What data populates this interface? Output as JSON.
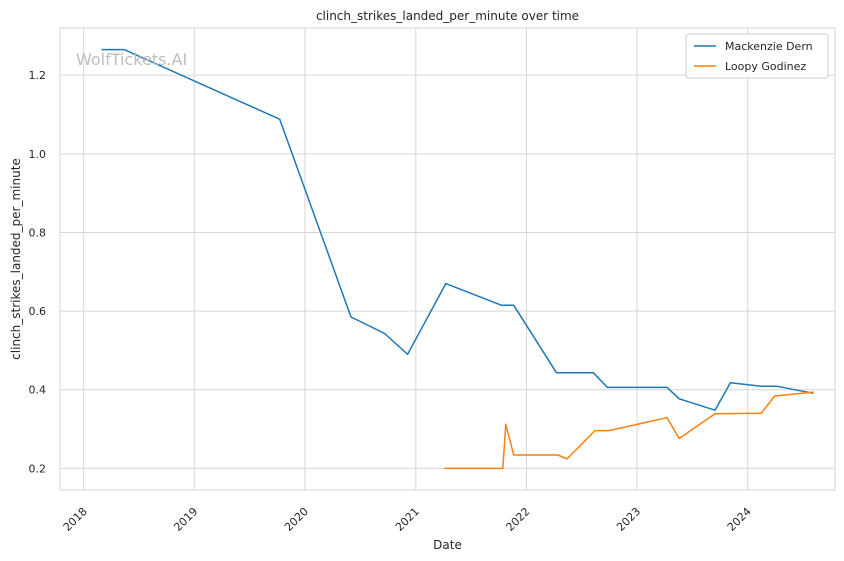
{
  "chart_data": {
    "type": "line",
    "title": "clinch_strikes_landed_per_minute over time",
    "xlabel": "Date",
    "ylabel": "clinch_strikes_landed_per_minute",
    "watermark": "WolfTickets.AI",
    "x_range": [
      "2017-10-15",
      "2024-10-15"
    ],
    "ylim": [
      0.145,
      1.32
    ],
    "x_ticks": [
      "2018",
      "2019",
      "2020",
      "2021",
      "2022",
      "2023",
      "2024"
    ],
    "y_ticks": [
      "0.2",
      "0.4",
      "0.6",
      "0.8",
      "1.0",
      "1.2"
    ],
    "grid": true,
    "legend_position": "top-right",
    "series": [
      {
        "name": "Mackenzie Dern",
        "color": "#1f77b4",
        "points": [
          [
            "2018-03-01",
            1.265
          ],
          [
            "2018-05-15",
            1.265
          ],
          [
            "2019-10-10",
            1.088
          ],
          [
            "2020-06-01",
            0.585
          ],
          [
            "2020-09-20",
            0.543
          ],
          [
            "2020-12-05",
            0.49
          ],
          [
            "2021-04-10",
            0.67
          ],
          [
            "2021-10-10",
            0.615
          ],
          [
            "2021-11-20",
            0.615
          ],
          [
            "2022-04-10",
            0.443
          ],
          [
            "2022-08-10",
            0.443
          ],
          [
            "2022-09-25",
            0.406
          ],
          [
            "2023-04-10",
            0.406
          ],
          [
            "2023-05-20",
            0.377
          ],
          [
            "2023-09-15",
            0.348
          ],
          [
            "2023-11-05",
            0.418
          ],
          [
            "2024-02-15",
            0.409
          ],
          [
            "2024-04-05",
            0.409
          ],
          [
            "2024-08-05",
            0.391
          ]
        ]
      },
      {
        "name": "Loopy Godinez",
        "color": "#ff7f0e",
        "points": [
          [
            "2021-04-05",
            0.2
          ],
          [
            "2021-10-15",
            0.2
          ],
          [
            "2021-10-25",
            0.312
          ],
          [
            "2021-11-20",
            0.234
          ],
          [
            "2022-04-15",
            0.234
          ],
          [
            "2022-05-15",
            0.224
          ],
          [
            "2022-08-15",
            0.296
          ],
          [
            "2022-09-30",
            0.296
          ],
          [
            "2023-04-10",
            0.329
          ],
          [
            "2023-05-20",
            0.276
          ],
          [
            "2023-09-15",
            0.339
          ],
          [
            "2024-02-15",
            0.34
          ],
          [
            "2024-03-30",
            0.384
          ],
          [
            "2024-08-05",
            0.394
          ]
        ]
      }
    ]
  }
}
